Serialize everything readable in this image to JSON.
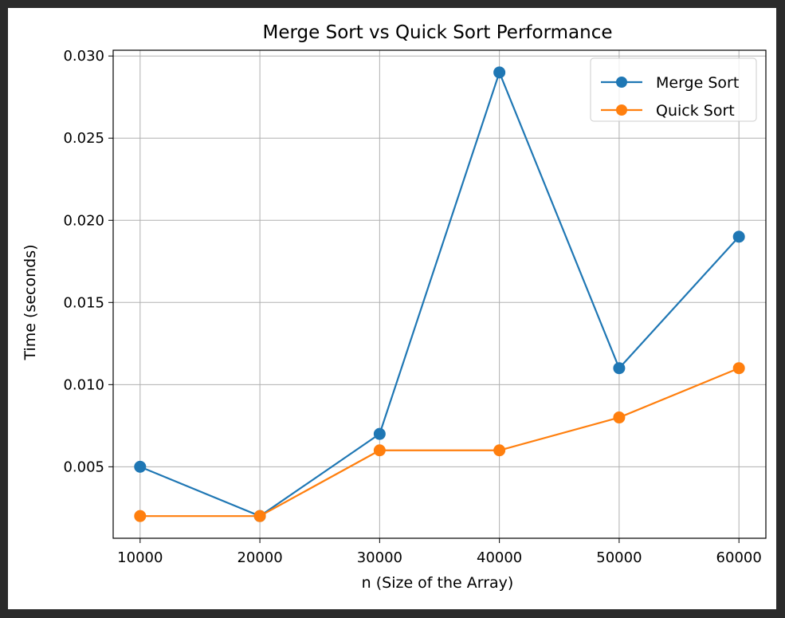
{
  "chart_data": {
    "type": "line",
    "title": "Merge Sort vs Quick Sort Performance",
    "xlabel": "n (Size of the Array)",
    "ylabel": "Time (seconds)",
    "x": [
      10000,
      20000,
      30000,
      40000,
      50000,
      60000
    ],
    "xticks": [
      "10000",
      "20000",
      "30000",
      "40000",
      "50000",
      "60000"
    ],
    "yticks": [
      "0.005",
      "0.010",
      "0.015",
      "0.020",
      "0.025",
      "0.030"
    ],
    "ytick_values": [
      0.005,
      0.01,
      0.015,
      0.02,
      0.025,
      0.03
    ],
    "xlim": [
      7750,
      62250
    ],
    "ylim": [
      0.00065,
      0.03035
    ],
    "grid": true,
    "legend_position": "top-right",
    "markers": "circle",
    "series": [
      {
        "name": "Merge Sort",
        "color": "#1f77b4",
        "values": [
          0.005,
          0.002,
          0.007,
          0.029,
          0.011,
          0.019
        ]
      },
      {
        "name": "Quick Sort",
        "color": "#ff7f0e",
        "values": [
          0.002,
          0.002,
          0.006,
          0.006,
          0.008,
          0.011
        ]
      }
    ]
  }
}
